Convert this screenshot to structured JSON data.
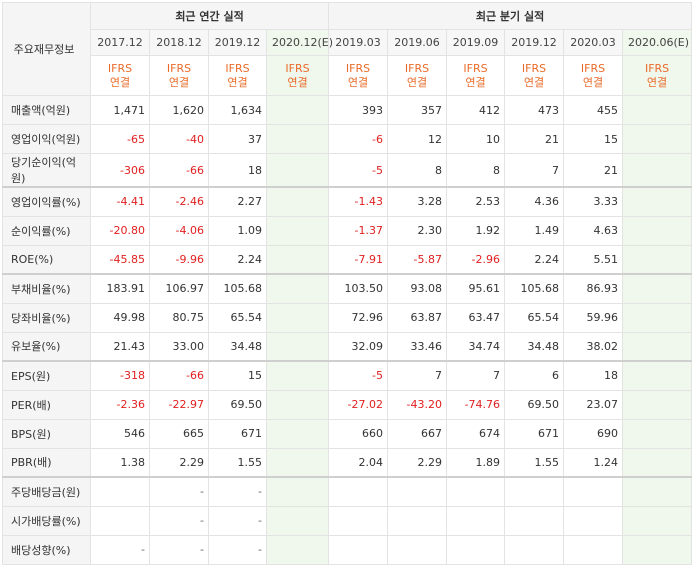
{
  "header": {
    "row_label": "주요재무정보",
    "annual_title": "최근 연간 실적",
    "quarter_title": "최근 분기 실적",
    "periods": [
      "2017.12",
      "2018.12",
      "2019.12",
      "2020.12(E)",
      "2019.03",
      "2019.06",
      "2019.09",
      "2019.12",
      "2020.03",
      "2020.06(E)"
    ],
    "ifrs_line1": "IFRS",
    "ifrs_line2": "연결"
  },
  "rows": [
    {
      "label": "매출액(억원)",
      "values": [
        "1,471",
        "1,620",
        "1,634",
        "",
        "393",
        "357",
        "412",
        "473",
        "455",
        ""
      ]
    },
    {
      "label": "영업이익(억원)",
      "values": [
        "-65",
        "-40",
        "37",
        "",
        "-6",
        "12",
        "10",
        "21",
        "15",
        ""
      ]
    },
    {
      "label": "당기순이익(억원)",
      "values": [
        "-306",
        "-66",
        "18",
        "",
        "-5",
        "8",
        "8",
        "7",
        "21",
        ""
      ]
    },
    {
      "label": "영업이익률(%)",
      "values": [
        "-4.41",
        "-2.46",
        "2.27",
        "",
        "-1.43",
        "3.28",
        "2.53",
        "4.36",
        "3.33",
        ""
      ]
    },
    {
      "label": "순이익률(%)",
      "values": [
        "-20.80",
        "-4.06",
        "1.09",
        "",
        "-1.37",
        "2.30",
        "1.92",
        "1.49",
        "4.63",
        ""
      ]
    },
    {
      "label": "ROE(%)",
      "values": [
        "-45.85",
        "-9.96",
        "2.24",
        "",
        "-7.91",
        "-5.87",
        "-2.96",
        "2.24",
        "5.51",
        ""
      ]
    },
    {
      "label": "부채비율(%)",
      "values": [
        "183.91",
        "106.97",
        "105.68",
        "",
        "103.50",
        "93.08",
        "95.61",
        "105.68",
        "86.93",
        ""
      ]
    },
    {
      "label": "당좌비율(%)",
      "values": [
        "49.98",
        "80.75",
        "65.54",
        "",
        "72.96",
        "63.87",
        "63.47",
        "65.54",
        "59.96",
        ""
      ]
    },
    {
      "label": "유보율(%)",
      "values": [
        "21.43",
        "33.00",
        "34.48",
        "",
        "32.09",
        "33.46",
        "34.74",
        "34.48",
        "38.02",
        ""
      ]
    },
    {
      "label": "EPS(원)",
      "values": [
        "-318",
        "-66",
        "15",
        "",
        "-5",
        "7",
        "7",
        "6",
        "18",
        ""
      ]
    },
    {
      "label": "PER(배)",
      "values": [
        "-2.36",
        "-22.97",
        "69.50",
        "",
        "-27.02",
        "-43.20",
        "-74.76",
        "69.50",
        "23.07",
        ""
      ]
    },
    {
      "label": "BPS(원)",
      "values": [
        "546",
        "665",
        "671",
        "",
        "660",
        "667",
        "674",
        "671",
        "690",
        ""
      ]
    },
    {
      "label": "PBR(배)",
      "values": [
        "1.38",
        "2.29",
        "1.55",
        "",
        "2.04",
        "2.29",
        "1.89",
        "1.55",
        "1.24",
        ""
      ]
    },
    {
      "label": "주당배당금(원)",
      "values": [
        "",
        "-",
        "-",
        "",
        "",
        "",
        "",
        "",
        "",
        ""
      ]
    },
    {
      "label": "시가배당률(%)",
      "values": [
        "",
        "-",
        "-",
        "",
        "",
        "",
        "",
        "",
        "",
        ""
      ]
    },
    {
      "label": "배당성향(%)",
      "values": [
        "-",
        "-",
        "-",
        "",
        "",
        "",
        "",
        "",
        "",
        ""
      ]
    }
  ]
}
